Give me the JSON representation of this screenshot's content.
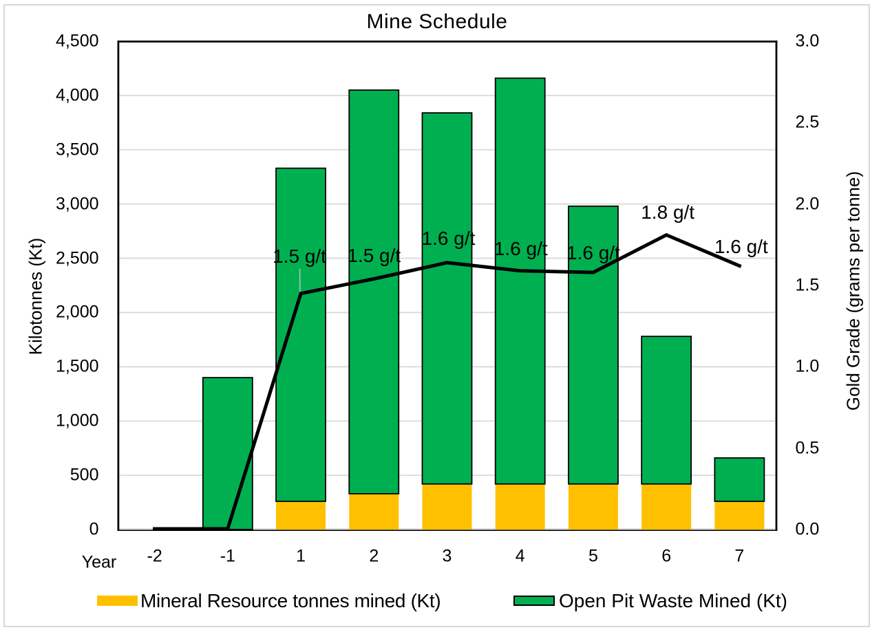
{
  "title": "Mine Schedule",
  "chart_data": {
    "type": "combo",
    "title": "Mine Schedule",
    "grid": "horizontal",
    "legend_position": "bottom",
    "x_axis": {
      "title": "Year",
      "categories": [
        "-2",
        "-1",
        "1",
        "2",
        "3",
        "4",
        "5",
        "6",
        "7"
      ]
    },
    "y_axis_left": {
      "title": "Kilotonnes (Kt)",
      "min": 0,
      "max": 4500,
      "step": 500,
      "ticks": [
        "4,500",
        "4,000",
        "3,500",
        "3,000",
        "2,500",
        "2,000",
        "1,500",
        "1,000",
        "500",
        "0"
      ]
    },
    "y_axis_right": {
      "title": "Gold Grade (grams per tonne)",
      "min": 0.0,
      "max": 3.0,
      "step": 0.5,
      "ticks": [
        "3.0",
        "2.5",
        "2.0",
        "1.5",
        "1.0",
        "0.5",
        "0.0"
      ]
    },
    "series": [
      {
        "name": "Mineral Resource tonnes mined (Kt)",
        "type": "bar",
        "stack": "tonnes",
        "axis": "left",
        "color": "#FFC000",
        "values": [
          0,
          0,
          260,
          330,
          420,
          420,
          420,
          420,
          260
        ]
      },
      {
        "name": "Open Pit Waste Mined (Kt)",
        "type": "bar",
        "stack": "tonnes",
        "axis": "left",
        "color": "#00B050",
        "border_color": "#000000",
        "values": [
          0,
          1400,
          3070,
          3720,
          3420,
          3740,
          2560,
          1360,
          400
        ]
      },
      {
        "name": "Gold Grade",
        "type": "line",
        "axis": "right",
        "color": "#000000",
        "values": [
          0.0,
          0.0,
          1.45,
          1.54,
          1.64,
          1.59,
          1.58,
          1.81,
          1.62
        ],
        "data_labels": [
          "",
          "",
          "1.5 g/t",
          "1.5 g/t",
          "1.6 g/t",
          "1.6 g/t",
          "1.6 g/t",
          "1.8 g/t",
          "1.6 g/t"
        ]
      }
    ]
  },
  "legend": {
    "items": [
      {
        "label": "Mineral Resource tonnes mined (Kt)",
        "color": "#FFC000",
        "bordered": false
      },
      {
        "label": "Open Pit Waste Mined (Kt)",
        "color": "#00B050",
        "bordered": true
      }
    ]
  },
  "colors": {
    "mineral_bar": "#FFC000",
    "waste_bar": "#00B050",
    "grade_line": "#000000",
    "gridline": "#D9D9D9",
    "plot_border": "#000000",
    "chart_border": "#D7D7D7",
    "text": "#000000",
    "leader_line": "#BFBFBF"
  }
}
